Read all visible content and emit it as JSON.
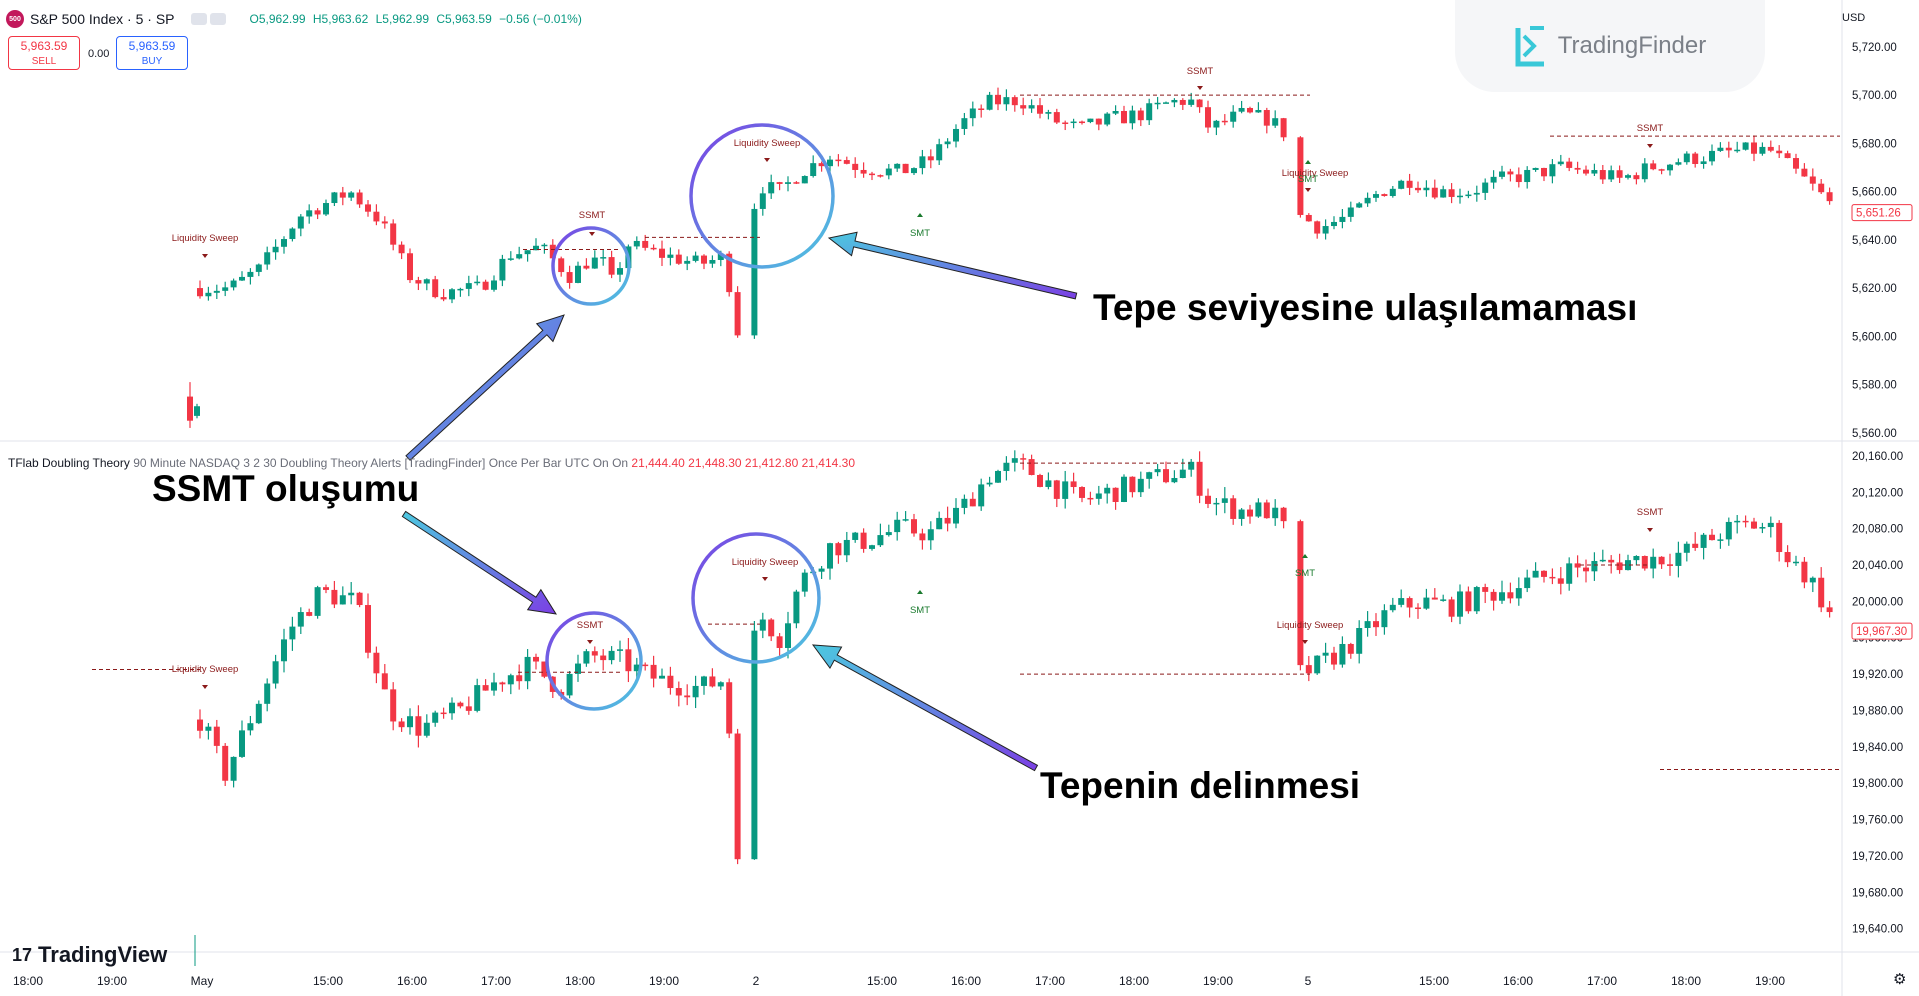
{
  "header": {
    "symbol_badge": "500",
    "title": "S&P 500 Index · 5 · SP",
    "ohlc": {
      "o": "O5,962.99",
      "h": "H5,963.62",
      "l": "L5,962.99",
      "c": "C5,963.59",
      "chg": "−0.56 (−0.01%)"
    },
    "sell_price": "5,963.59",
    "sell_label": "SELL",
    "spread": "0.00",
    "buy_price": "5,963.59",
    "buy_label": "BUY",
    "currency": "USD"
  },
  "branding": {
    "tradingfinder": "TradingFinder",
    "tradingview": "TradingView",
    "tv_mark": "17"
  },
  "indicator": {
    "name": "TFlab Doubling Theory",
    "params": "90 Minute NASDAQ 3 2 30 Doubling Theory Alerts [TradingFinder] Once Per Bar UTC On On",
    "values": [
      "21,444.40",
      "21,448.30",
      "21,412.80",
      "21,414.30"
    ]
  },
  "callouts": {
    "top_right": "Tepe seviyesine ulaşılamaması",
    "left": "SSMT oluşumu",
    "bottom_right": "Tepenin delinmesi"
  },
  "colors": {
    "up": "#089981",
    "down": "#f23645",
    "marker": "#8b1a1a",
    "smt": "#1a7a2e",
    "circle_a": "#7b3fe4",
    "circle_b": "#4cc9e0"
  },
  "chart_data": [
    {
      "type": "candlestick",
      "name": "S&P 500 Index",
      "y_ticks": [
        "5,720.00",
        "5,700.00",
        "5,680.00",
        "5,660.00",
        "5,640.00",
        "5,620.00",
        "5,600.00",
        "5,580.00",
        "5,560.00"
      ],
      "ylim": [
        5557,
        5727
      ],
      "last_price": "5,651.26",
      "annotations": [
        {
          "text": "Liquidity Sweep",
          "x": "18:00 (May 1)"
        },
        {
          "text": "SSMT",
          "x": "18:00 (May 1)"
        },
        {
          "text": "Liquidity Sweep",
          "x": "2 May 14:30"
        },
        {
          "text": "SSMT",
          "x": "2 May 17:50"
        },
        {
          "text": "SMT",
          "x": "2 May 16:30"
        },
        {
          "text": "Liquidity Sweep",
          "x": "2 May 19:45"
        },
        {
          "text": "SMT",
          "x": "2 May 19:45"
        },
        {
          "text": "SSMT",
          "x": "5 May 18:00"
        }
      ]
    },
    {
      "type": "candlestick",
      "name": "NASDAQ",
      "y_ticks": [
        "20,160.00",
        "20,120.00",
        "20,080.00",
        "20,040.00",
        "20,000.00",
        "19,960.00",
        "19,920.00",
        "19,880.00",
        "19,840.00",
        "19,800.00",
        "19,760.00",
        "19,720.00",
        "19,680.00",
        "19,640.00"
      ],
      "ylim": [
        19633,
        20172
      ],
      "last_price": "19,967.30",
      "annotations": [
        {
          "text": "Liquidity Sweep",
          "x": "May 1"
        },
        {
          "text": "SSMT",
          "x": "18:00 (May 1)"
        },
        {
          "text": "Liquidity Sweep",
          "x": "2 May 14:30"
        },
        {
          "text": "SMT",
          "x": "2 May 16:30"
        },
        {
          "text": "SMT",
          "x": "2 May 19:45"
        },
        {
          "text": "Liquidity Sweep",
          "x": "2 May 19:45"
        },
        {
          "text": "SSMT",
          "x": "5 May 18:00"
        }
      ]
    }
  ],
  "x_axis": [
    "18:00",
    "19:00",
    "May",
    "15:00",
    "16:00",
    "17:00",
    "18:00",
    "19:00",
    "2",
    "15:00",
    "16:00",
    "17:00",
    "18:00",
    "19:00",
    "5",
    "15:00",
    "16:00",
    "17:00",
    "18:00",
    "19:00"
  ]
}
